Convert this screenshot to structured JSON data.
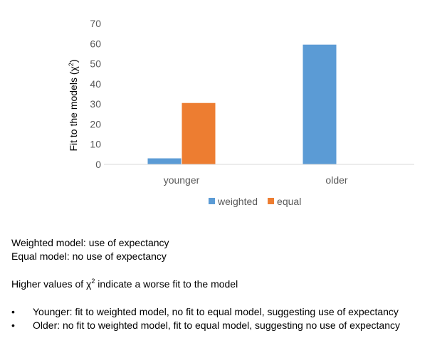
{
  "chart_data": {
    "type": "bar",
    "categories": [
      "younger",
      "older"
    ],
    "series": [
      {
        "name": "weighted",
        "color": "#5B9BD5",
        "values": [
          3,
          59.5
        ]
      },
      {
        "name": "equal",
        "color": "#ED7D31",
        "values": [
          30.5,
          0
        ]
      }
    ],
    "ylabel": "Fit to the models (χ2)",
    "ylabel_parts": {
      "before": "Fit to the models (χ",
      "sup": "2",
      "after": ")"
    },
    "ylim": [
      0,
      70
    ],
    "yticks": [
      0,
      10,
      20,
      30,
      40,
      50,
      60,
      70
    ],
    "grid": false,
    "legend_position": "bottom"
  },
  "notes": {
    "weighted_def": "Weighted model: use of expectancy",
    "equal_def": "Equal model: no use of expectancy",
    "higher_before": "Higher values of χ",
    "higher_sup": "2",
    "higher_after": " indicate a worse fit to the model",
    "bullet_char": "•",
    "bullets": [
      "Younger: fit to weighted model, no fit to equal model, suggesting use of expectancy",
      "Older: no fit to weighted model, fit to equal model, suggesting no use of expectancy"
    ]
  }
}
